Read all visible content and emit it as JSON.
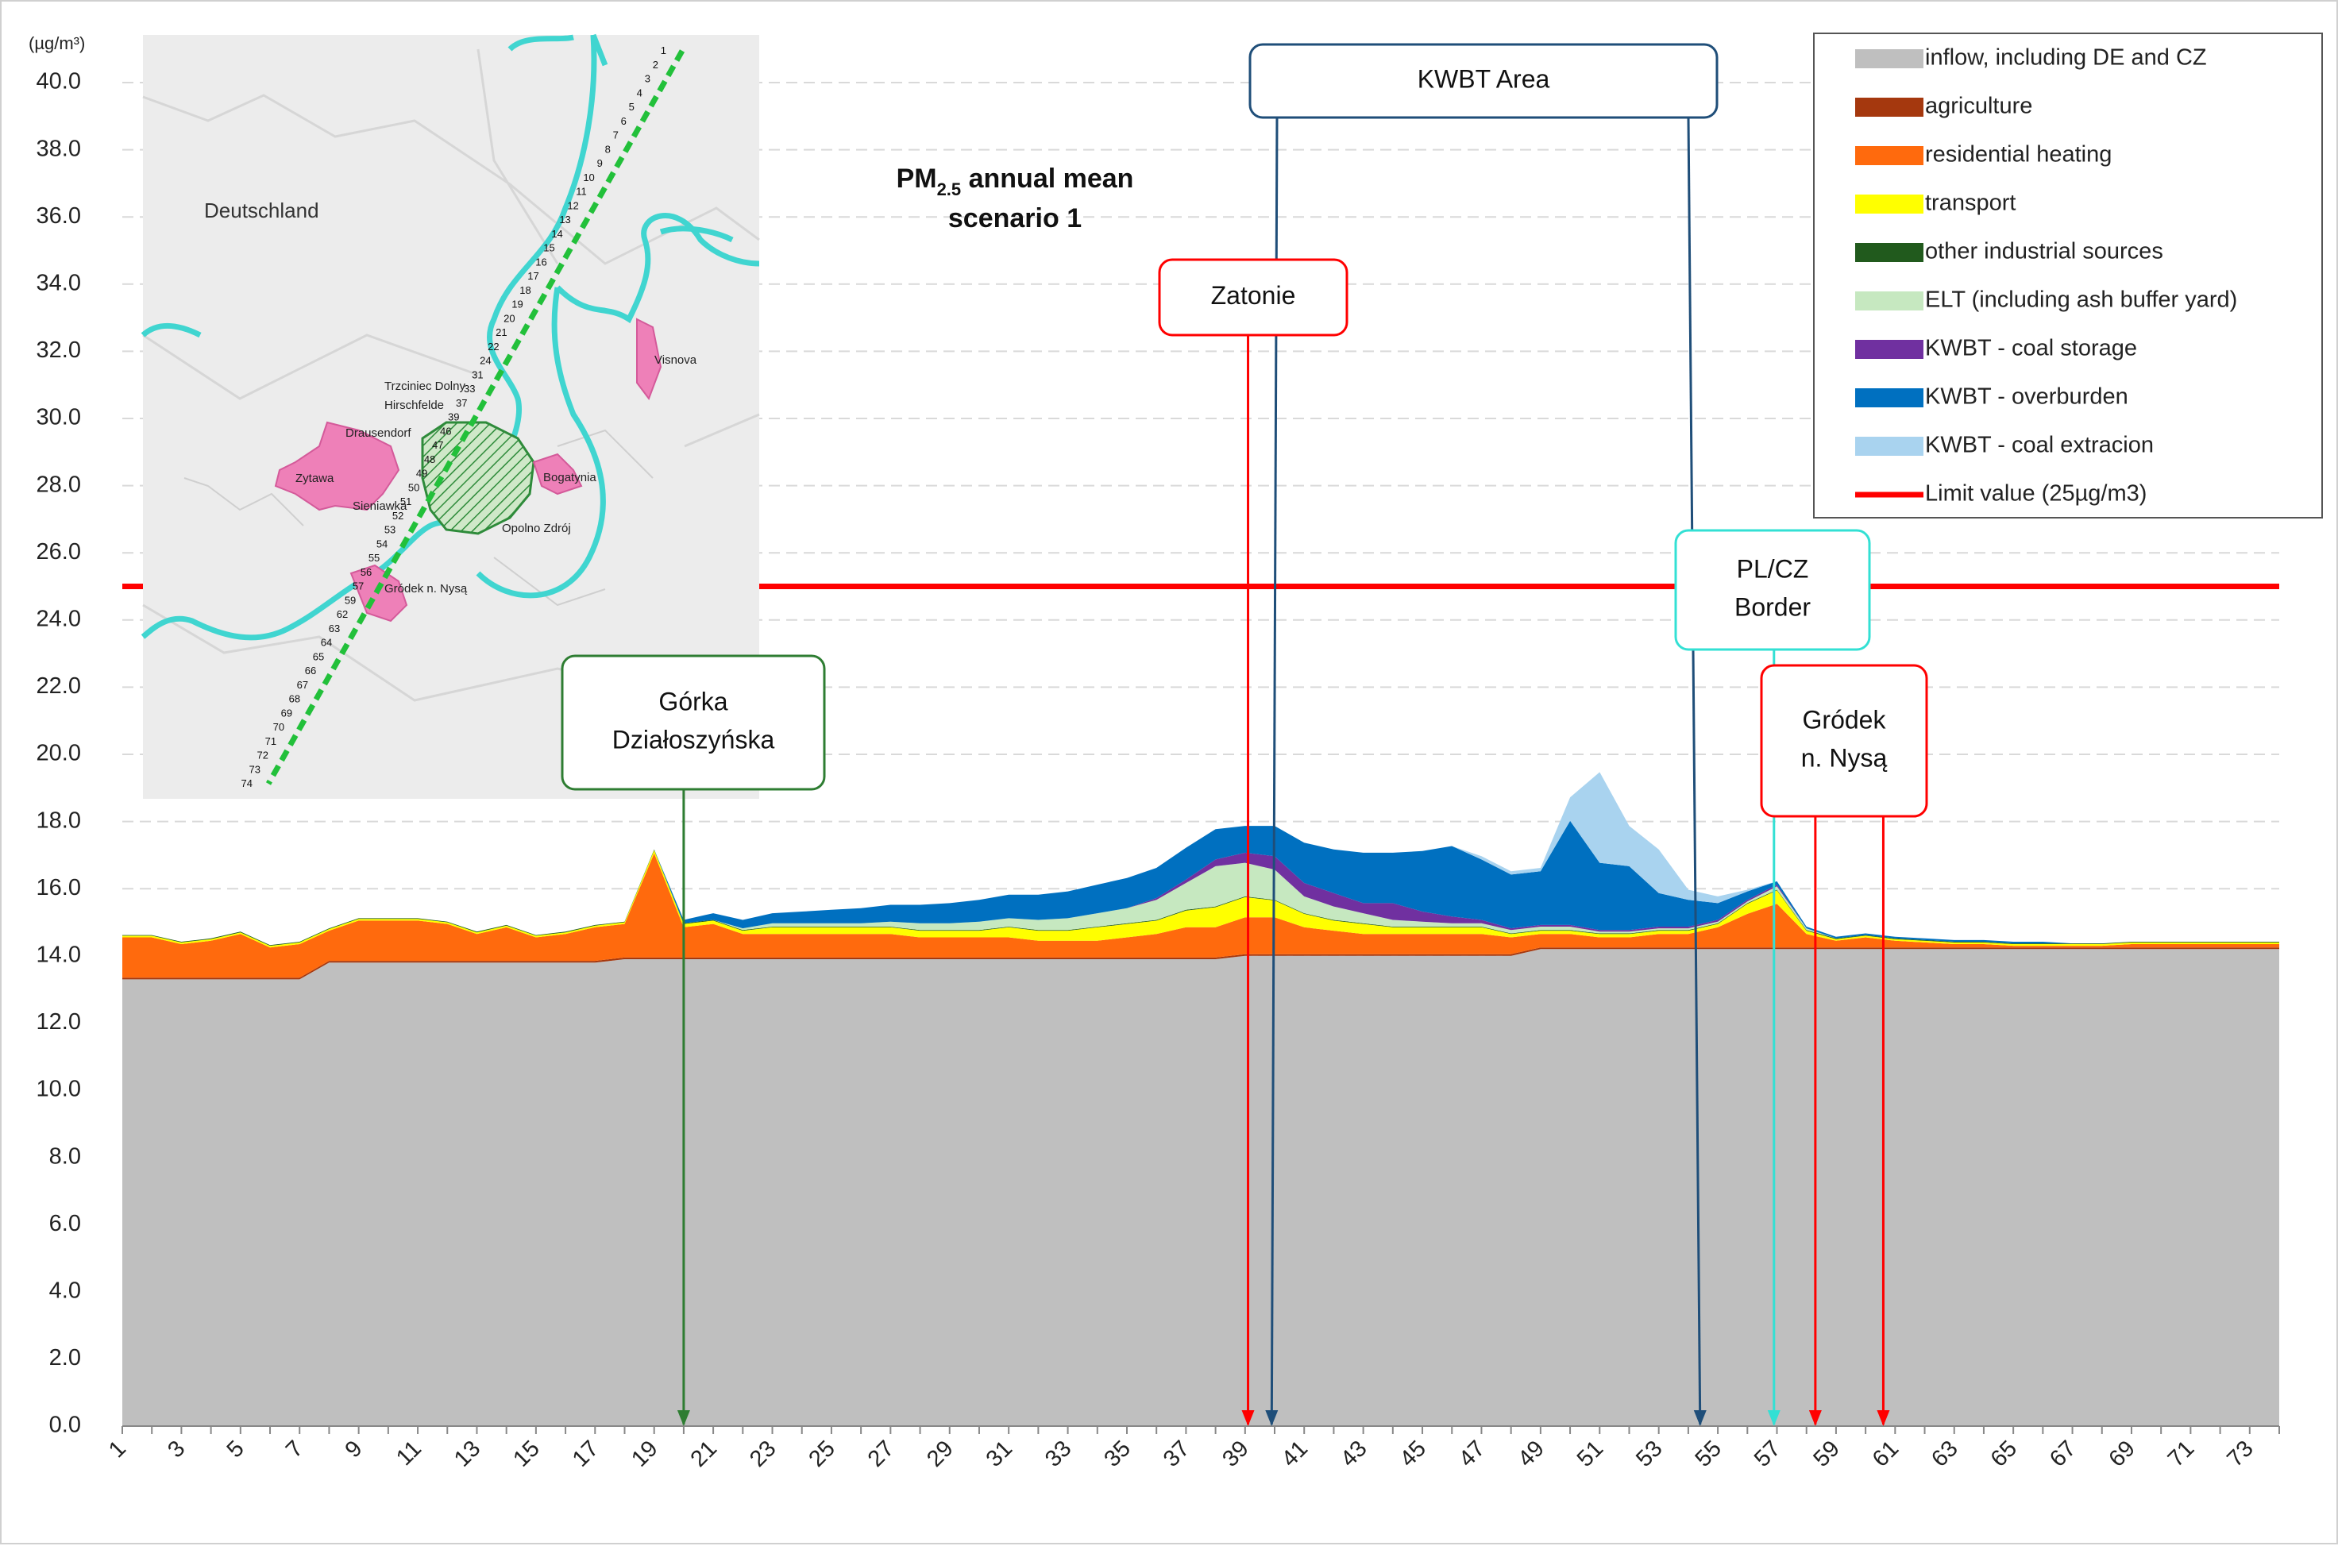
{
  "chart_data": {
    "type": "area",
    "title_lines": [
      "PM",
      "2.5",
      " annual mean",
      "scenario 1"
    ],
    "y_unit": "(µg/m³)",
    "ylim": [
      0,
      40
    ],
    "y_ticks": [
      "0.0",
      "2.0",
      "4.0",
      "6.0",
      "8.0",
      "10.0",
      "12.0",
      "14.0",
      "16.0",
      "18.0",
      "20.0",
      "22.0",
      "24.0",
      "26.0",
      "28.0",
      "30.0",
      "32.0",
      "34.0",
      "36.0",
      "38.0",
      "40.0"
    ],
    "x_ticks": [
      "1",
      "3",
      "5",
      "7",
      "9",
      "11",
      "13",
      "15",
      "17",
      "19",
      "21",
      "23",
      "25",
      "27",
      "29",
      "31",
      "33",
      "35",
      "37",
      "39",
      "41",
      "43",
      "45",
      "47",
      "49",
      "51",
      "53",
      "55",
      "57",
      "59",
      "61",
      "63",
      "65",
      "67",
      "69",
      "71",
      "73"
    ],
    "x": [
      1,
      2,
      3,
      4,
      5,
      6,
      7,
      8,
      9,
      10,
      11,
      12,
      13,
      14,
      15,
      16,
      17,
      18,
      19,
      20,
      21,
      22,
      23,
      24,
      25,
      26,
      27,
      28,
      29,
      30,
      31,
      32,
      33,
      34,
      35,
      36,
      37,
      38,
      39,
      40,
      41,
      42,
      43,
      44,
      45,
      46,
      47,
      48,
      49,
      50,
      51,
      52,
      53,
      54,
      55,
      56,
      57,
      58,
      59,
      60,
      61,
      62,
      63,
      64,
      65,
      66,
      67,
      68,
      69,
      70,
      71,
      72,
      73,
      74
    ],
    "series": [
      {
        "name": "inflow, including DE and CZ",
        "color": "#bfbfbf",
        "values": [
          13.3,
          13.3,
          13.3,
          13.3,
          13.3,
          13.3,
          13.3,
          13.8,
          13.8,
          13.8,
          13.8,
          13.8,
          13.8,
          13.8,
          13.8,
          13.8,
          13.8,
          13.9,
          13.9,
          13.9,
          13.9,
          13.9,
          13.9,
          13.9,
          13.9,
          13.9,
          13.9,
          13.9,
          13.9,
          13.9,
          13.9,
          13.9,
          13.9,
          13.9,
          13.9,
          13.9,
          13.9,
          13.9,
          14.0,
          14.0,
          14.0,
          14.0,
          14.0,
          14.0,
          14.0,
          14.0,
          14.0,
          14.0,
          14.2,
          14.2,
          14.2,
          14.2,
          14.2,
          14.2,
          14.2,
          14.2,
          14.2,
          14.2,
          14.2,
          14.2,
          14.2,
          14.2,
          14.2,
          14.2,
          14.2,
          14.2,
          14.2,
          14.2,
          14.2,
          14.2,
          14.2,
          14.2,
          14.2,
          14.2
        ]
      },
      {
        "name": "agriculture",
        "color": "#a5380e",
        "values": [
          0.05,
          0.05,
          0.05,
          0.05,
          0.05,
          0.05,
          0.05,
          0.05,
          0.05,
          0.05,
          0.05,
          0.05,
          0.05,
          0.05,
          0.05,
          0.05,
          0.05,
          0.05,
          0.05,
          0.05,
          0.05,
          0.05,
          0.05,
          0.05,
          0.05,
          0.05,
          0.05,
          0.05,
          0.05,
          0.05,
          0.05,
          0.05,
          0.05,
          0.05,
          0.05,
          0.05,
          0.05,
          0.05,
          0.05,
          0.05,
          0.05,
          0.05,
          0.05,
          0.05,
          0.05,
          0.05,
          0.05,
          0.05,
          0.05,
          0.05,
          0.05,
          0.05,
          0.05,
          0.05,
          0.05,
          0.05,
          0.05,
          0.05,
          0.05,
          0.05,
          0.05,
          0.05,
          0.05,
          0.05,
          0.05,
          0.05,
          0.05,
          0.05,
          0.05,
          0.05,
          0.05,
          0.05,
          0.05,
          0.05
        ]
      },
      {
        "name": "residential heating",
        "color": "#ff6a0d",
        "values": [
          1.2,
          1.2,
          1.0,
          1.1,
          1.3,
          0.9,
          1.0,
          0.9,
          1.2,
          1.2,
          1.2,
          1.1,
          0.8,
          1.0,
          0.7,
          0.8,
          1.0,
          1.0,
          3.1,
          0.9,
          1.0,
          0.7,
          0.7,
          0.7,
          0.7,
          0.7,
          0.7,
          0.6,
          0.6,
          0.6,
          0.6,
          0.5,
          0.5,
          0.5,
          0.6,
          0.7,
          0.9,
          0.9,
          1.1,
          1.1,
          0.8,
          0.7,
          0.6,
          0.6,
          0.6,
          0.6,
          0.6,
          0.5,
          0.4,
          0.4,
          0.3,
          0.3,
          0.4,
          0.4,
          0.6,
          1.0,
          1.3,
          0.4,
          0.2,
          0.3,
          0.2,
          0.15,
          0.1,
          0.1,
          0.05,
          0.05,
          0.05,
          0.05,
          0.1,
          0.1,
          0.1,
          0.1,
          0.1,
          0.1
        ]
      },
      {
        "name": "transport",
        "color": "#ffff00",
        "values": [
          0.05,
          0.05,
          0.05,
          0.05,
          0.05,
          0.05,
          0.05,
          0.05,
          0.05,
          0.05,
          0.05,
          0.05,
          0.05,
          0.05,
          0.05,
          0.05,
          0.05,
          0.05,
          0.1,
          0.1,
          0.1,
          0.1,
          0.2,
          0.2,
          0.2,
          0.2,
          0.2,
          0.2,
          0.2,
          0.2,
          0.3,
          0.3,
          0.3,
          0.4,
          0.4,
          0.4,
          0.5,
          0.6,
          0.6,
          0.5,
          0.4,
          0.3,
          0.3,
          0.2,
          0.2,
          0.2,
          0.2,
          0.1,
          0.1,
          0.1,
          0.1,
          0.1,
          0.1,
          0.1,
          0.1,
          0.3,
          0.4,
          0.1,
          0.05,
          0.05,
          0.05,
          0.05,
          0.05,
          0.05,
          0.05,
          0.05,
          0.05,
          0.05,
          0.05,
          0.05,
          0.05,
          0.05,
          0.05,
          0.05
        ]
      },
      {
        "name": "other industrial sources",
        "color": "#215a1d",
        "values": [
          0.02,
          0.02,
          0.02,
          0.02,
          0.02,
          0.02,
          0.02,
          0.02,
          0.02,
          0.02,
          0.02,
          0.02,
          0.02,
          0.02,
          0.02,
          0.02,
          0.02,
          0.02,
          0.02,
          0.02,
          0.02,
          0.02,
          0.02,
          0.02,
          0.02,
          0.02,
          0.02,
          0.02,
          0.02,
          0.02,
          0.02,
          0.02,
          0.02,
          0.02,
          0.02,
          0.02,
          0.02,
          0.02,
          0.02,
          0.02,
          0.02,
          0.02,
          0.02,
          0.02,
          0.02,
          0.02,
          0.02,
          0.02,
          0.02,
          0.02,
          0.02,
          0.02,
          0.02,
          0.02,
          0.02,
          0.02,
          0.02,
          0.02,
          0.02,
          0.02,
          0.02,
          0.02,
          0.02,
          0.02,
          0.02,
          0.02,
          0.02,
          0.02,
          0.02,
          0.02,
          0.02,
          0.02,
          0.02,
          0.02
        ]
      },
      {
        "name": "ELT (including ash buffer yard)",
        "color": "#c6e8c0",
        "values": [
          0,
          0,
          0,
          0,
          0,
          0,
          0,
          0,
          0,
          0,
          0,
          0,
          0,
          0,
          0,
          0,
          0,
          0,
          0,
          0,
          0,
          0.05,
          0.1,
          0.1,
          0.1,
          0.1,
          0.15,
          0.2,
          0.2,
          0.25,
          0.25,
          0.3,
          0.35,
          0.4,
          0.45,
          0.6,
          0.8,
          1.2,
          1.0,
          0.9,
          0.5,
          0.4,
          0.3,
          0.2,
          0.15,
          0.1,
          0.1,
          0.1,
          0.1,
          0.1,
          0.05,
          0.05,
          0.05,
          0.05,
          0.05,
          0.05,
          0.1,
          0.05,
          0,
          0,
          0,
          0,
          0,
          0,
          0,
          0,
          0,
          0,
          0,
          0,
          0,
          0,
          0,
          0
        ]
      },
      {
        "name": "KWBT - coal storage",
        "color": "#7030a0",
        "values": [
          0,
          0,
          0,
          0,
          0,
          0,
          0,
          0,
          0,
          0,
          0,
          0,
          0,
          0,
          0,
          0,
          0,
          0,
          0,
          0,
          0,
          0,
          0,
          0,
          0,
          0,
          0,
          0,
          0,
          0,
          0,
          0,
          0,
          0,
          0,
          0.05,
          0.1,
          0.2,
          0.3,
          0.4,
          0.4,
          0.4,
          0.3,
          0.5,
          0.3,
          0.2,
          0.1,
          0.05,
          0.05,
          0.05,
          0.05,
          0.05,
          0.05,
          0.05,
          0.05,
          0.05,
          0.05,
          0,
          0,
          0,
          0,
          0,
          0,
          0,
          0,
          0,
          0,
          0,
          0,
          0,
          0,
          0,
          0,
          0
        ]
      },
      {
        "name": "KWBT - overburden",
        "color": "#0070c0",
        "values": [
          0,
          0,
          0,
          0,
          0,
          0,
          0,
          0,
          0,
          0,
          0,
          0,
          0,
          0,
          0,
          0,
          0,
          0,
          0,
          0.1,
          0.2,
          0.25,
          0.3,
          0.35,
          0.4,
          0.45,
          0.5,
          0.55,
          0.6,
          0.65,
          0.7,
          0.75,
          0.8,
          0.85,
          0.9,
          0.9,
          0.95,
          0.9,
          0.8,
          0.9,
          1.2,
          1.3,
          1.5,
          1.5,
          1.8,
          2.1,
          1.8,
          1.6,
          1.6,
          3.1,
          2.0,
          1.9,
          1.0,
          0.8,
          0.5,
          0.25,
          0.1,
          0.05,
          0.05,
          0.05,
          0.05,
          0.05,
          0.05,
          0.05,
          0.05,
          0.05,
          0,
          0,
          0,
          0,
          0,
          0,
          0,
          0
        ]
      },
      {
        "name": "KWBT - coal extracion",
        "color": "#a9d3ef",
        "values": [
          0,
          0,
          0,
          0,
          0,
          0,
          0,
          0,
          0,
          0,
          0,
          0,
          0,
          0,
          0,
          0,
          0,
          0,
          0,
          0,
          0,
          0,
          0,
          0,
          0,
          0,
          0,
          0,
          0,
          0,
          0,
          0,
          0,
          0,
          0,
          0,
          0,
          0,
          0,
          0,
          0,
          0,
          0,
          0,
          0,
          0,
          0.1,
          0.1,
          0.1,
          0.7,
          2.7,
          1.2,
          1.3,
          0.3,
          0.2,
          0.05,
          0,
          0,
          0,
          0,
          0,
          0,
          0,
          0,
          0,
          0,
          0,
          0,
          0,
          0,
          0,
          0,
          0,
          0
        ]
      }
    ],
    "limit_value": {
      "name": "Limit value (25µg/m3)",
      "value": 25,
      "color": "#ff0000"
    },
    "callouts": [
      {
        "label_lines": [
          "KWBT Area"
        ],
        "color": "#1f4e79",
        "arrows_x": [
          39.9,
          54.4
        ]
      },
      {
        "label_lines": [
          "Zatonie"
        ],
        "color": "#ff0000",
        "arrows_x": [
          39.1
        ]
      },
      {
        "label_lines": [
          "PL/CZ",
          "Border"
        ],
        "color": "#33e0d4",
        "arrows_x": [
          56.9
        ]
      },
      {
        "label_lines": [
          "Gródek",
          "n. Nysą"
        ],
        "color": "#ff0000",
        "arrows_x": [
          58.3,
          60.6
        ]
      },
      {
        "label_lines": [
          "Górka",
          "Działoszyńska"
        ],
        "color": "#2e7d32",
        "arrows_x": [
          20.0
        ]
      }
    ]
  },
  "map_labels": {
    "country": "Deutschland",
    "towns": [
      "Trzciniec Dolny",
      "Hirschfelde",
      "Drausendorf",
      "Zytawa",
      "Sieniawka",
      "Bogatynia",
      "Opolno Zdrój",
      "Gródek n. Nysą",
      "Visnova"
    ],
    "route_numbers": [
      "1",
      "2",
      "3",
      "4",
      "5",
      "6",
      "7",
      "8",
      "9",
      "10",
      "11",
      "12",
      "13",
      "14",
      "15",
      "16",
      "17",
      "18",
      "19",
      "20",
      "21",
      "22",
      "24",
      "31",
      "33",
      "37",
      "39",
      "46",
      "47",
      "48",
      "49",
      "50",
      "51",
      "52",
      "53",
      "54",
      "55",
      "56",
      "57",
      "59",
      "62",
      "63",
      "64",
      "65",
      "66",
      "67",
      "68",
      "69",
      "70",
      "71",
      "72",
      "73",
      "74"
    ]
  },
  "legend": {
    "items": [
      {
        "label": "inflow, including DE and CZ",
        "color": "#bfbfbf",
        "kind": "patch"
      },
      {
        "label": "agriculture",
        "color": "#a5380e",
        "kind": "patch"
      },
      {
        "label": "residential heating",
        "color": "#ff6a0d",
        "kind": "patch"
      },
      {
        "label": "transport",
        "color": "#ffff00",
        "kind": "patch"
      },
      {
        "label": "other industrial sources",
        "color": "#215a1d",
        "kind": "patch"
      },
      {
        "label": "ELT (including ash buffer yard)",
        "color": "#c6e8c0",
        "kind": "patch"
      },
      {
        "label": "KWBT - coal storage",
        "color": "#7030a0",
        "kind": "patch"
      },
      {
        "label": "KWBT - overburden",
        "color": "#0070c0",
        "kind": "patch"
      },
      {
        "label": "KWBT - coal extracion",
        "color": "#a9d3ef",
        "kind": "patch"
      },
      {
        "label": "Limit value (25µg/m3)",
        "color": "#ff0000",
        "kind": "line"
      }
    ]
  }
}
